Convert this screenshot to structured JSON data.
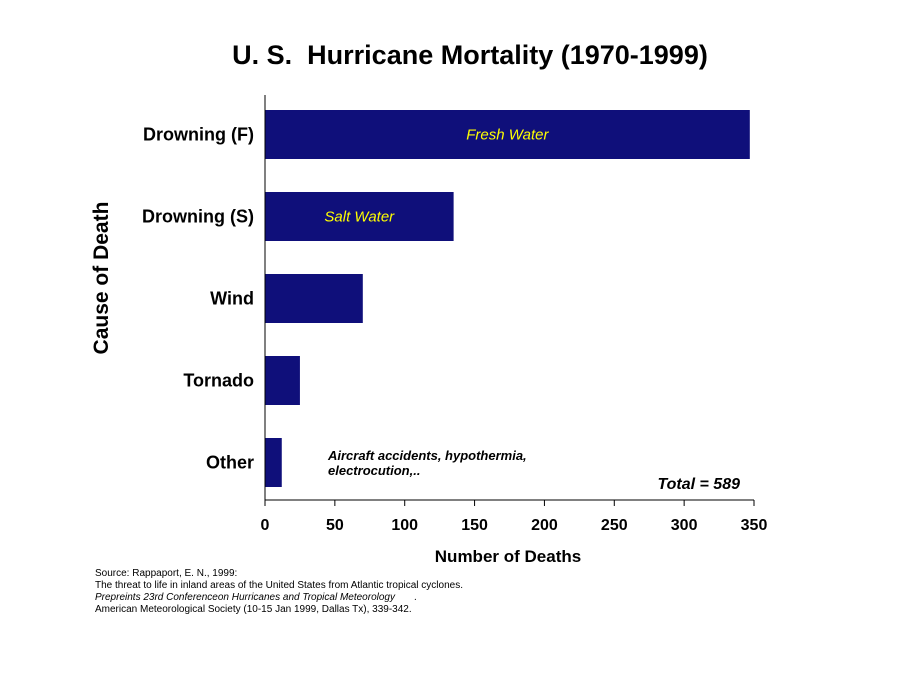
{
  "chart_data": {
    "type": "bar",
    "orientation": "horizontal",
    "title": "U. S.  Hurricane Mortality (1970-1999)",
    "xlabel": "Number of Deaths",
    "ylabel": "Cause of Death",
    "categories": [
      "Drowning (F)",
      "Drowning (S)",
      "Wind",
      "Tornado",
      "Other"
    ],
    "values": [
      347,
      135,
      70,
      25,
      12
    ],
    "xlim": [
      0,
      350
    ],
    "xticks": [
      "0",
      "50",
      "100",
      "150",
      "200",
      "250",
      "300",
      "350"
    ],
    "bar_labels": [
      "Fresh Water",
      "Salt Water",
      "",
      "",
      ""
    ],
    "annotations": [
      "Aircraft accidents, hypothermia,",
      "electrocution,.."
    ],
    "total_label": "Total = 589",
    "grid": false,
    "colors": {
      "bar": "#0f0f7a",
      "bar_label": "#ffff00"
    }
  },
  "source": {
    "line1": "Source: Rappaport, E. N., 1999:",
    "line2": "The threat to life in inland areas of the United States from Atlantic tropical cyclones.",
    "line3": "Prepreints 23rd Conferenceon Hurricanes and Tropical Meteorology       .",
    "line4": "American Meteorological Society (10-15 Jan 1999, Dallas Tx), 339-342."
  }
}
